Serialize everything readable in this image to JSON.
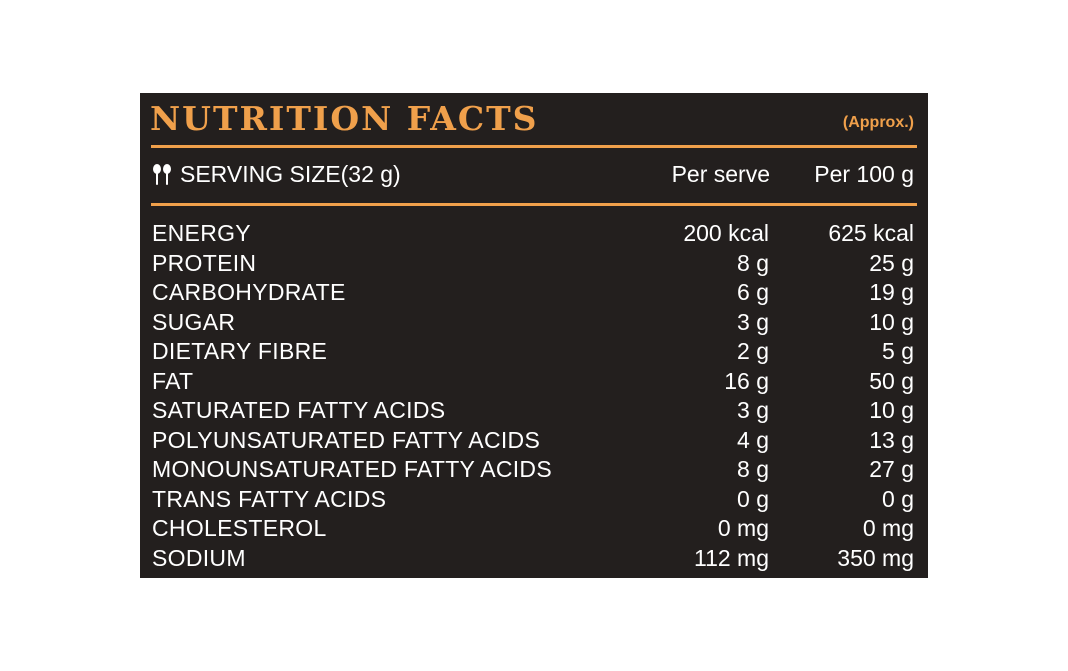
{
  "label": {
    "title": "NUTRITION FACTS",
    "approx": "(Approx.)",
    "serving_size": "SERVING SIZE(32 g)",
    "col_per_serve": "Per serve",
    "col_per_100": "Per 100 g",
    "serving_icon": "spoon-fork-icon",
    "colors": {
      "background": "#231f1e",
      "accent": "#f0a04b",
      "text": "#ffffff"
    }
  },
  "rows": [
    {
      "nutrient": "ENERGY",
      "per_serve": "200 kcal",
      "per_100": "625 kcal"
    },
    {
      "nutrient": "PROTEIN",
      "per_serve": "8 g",
      "per_100": "25 g"
    },
    {
      "nutrient": "CARBOHYDRATE",
      "per_serve": "6 g",
      "per_100": "19 g"
    },
    {
      "nutrient": "SUGAR",
      "per_serve": "3 g",
      "per_100": "10 g"
    },
    {
      "nutrient": "DIETARY FIBRE",
      "per_serve": "2 g",
      "per_100": "5 g"
    },
    {
      "nutrient": "FAT",
      "per_serve": "16 g",
      "per_100": "50 g"
    },
    {
      "nutrient": "SATURATED FATTY ACIDS",
      "per_serve": "3 g",
      "per_100": "10 g"
    },
    {
      "nutrient": "POLYUNSATURATED FATTY ACIDS",
      "per_serve": "4 g",
      "per_100": "13 g"
    },
    {
      "nutrient": "MONOUNSATURATED FATTY ACIDS",
      "per_serve": "8 g",
      "per_100": "27 g"
    },
    {
      "nutrient": "TRANS FATTY ACIDS",
      "per_serve": "0 g",
      "per_100": "0 g"
    },
    {
      "nutrient": "CHOLESTEROL",
      "per_serve": "0 mg",
      "per_100": "0 mg"
    },
    {
      "nutrient": "SODIUM",
      "per_serve": "112 mg",
      "per_100": "350 mg"
    }
  ]
}
